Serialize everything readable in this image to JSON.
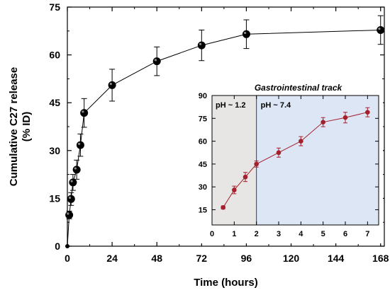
{
  "chart_data": [
    {
      "type": "scatter",
      "x_unit": "hours",
      "xlabel": "Time (hours)",
      "ylabel_lines": [
        "Cumulative C27 release",
        "(% ID)"
      ],
      "xlim": [
        0,
        170
      ],
      "ylim": [
        0,
        75
      ],
      "xticks": [
        0,
        24,
        48,
        72,
        96,
        120,
        144,
        168
      ],
      "yticks": [
        0,
        15,
        30,
        45,
        60,
        75
      ],
      "tick_labels_x": [
        "0",
        "24",
        "48",
        "72",
        "96",
        "120",
        "144",
        "168"
      ],
      "tick_labels_y": [
        "0",
        "15",
        "30",
        "45",
        "60",
        "75"
      ],
      "grid": false,
      "marker_color": "#000000",
      "line_color": "#000000",
      "series": [
        {
          "x": [
            0,
            1,
            2,
            3,
            5,
            7,
            9,
            24,
            48,
            72,
            96,
            168
          ],
          "y": [
            0,
            9.8,
            14.8,
            20,
            24,
            31.7,
            41.8,
            50.5,
            58,
            63,
            66.5,
            67.8
          ],
          "err": [
            0,
            1.2,
            2,
            2.5,
            3,
            3.5,
            4.5,
            5,
            4.5,
            4.8,
            4.5,
            4.5
          ]
        }
      ]
    },
    {
      "type": "scatter",
      "title": "Gastrointestinal track",
      "x_unit": "hours",
      "xlim": [
        0,
        7.5
      ],
      "ylim": [
        5,
        90
      ],
      "xticks": [
        0,
        1,
        2,
        3,
        4,
        5,
        6,
        7
      ],
      "yticks": [
        15,
        30,
        45,
        60,
        75,
        90
      ],
      "tick_labels_x": [
        "0",
        "1",
        "2",
        "3",
        "4",
        "5",
        "6",
        "7"
      ],
      "tick_labels_y": [
        "15",
        "30",
        "45",
        "60",
        "75",
        "90"
      ],
      "grid": false,
      "marker_color": "#a3202c",
      "line_color": "#a3202c",
      "regions": [
        {
          "label": "pH ~ 1.2",
          "x_range": [
            0,
            2
          ],
          "color": "#e7e6e4"
        },
        {
          "label": "pH ~ 7.4",
          "x_range": [
            2,
            7.5
          ],
          "color": "#dce6f4"
        }
      ],
      "series": [
        {
          "x": [
            0.5,
            1,
            1.5,
            2,
            3,
            4,
            5,
            6,
            7
          ],
          "y": [
            16.5,
            28,
            36.5,
            45,
            52.5,
            60,
            72.5,
            75.5,
            79
          ],
          "err": [
            1,
            2.5,
            3,
            2,
            3,
            3,
            3,
            3.5,
            3
          ]
        }
      ]
    }
  ]
}
